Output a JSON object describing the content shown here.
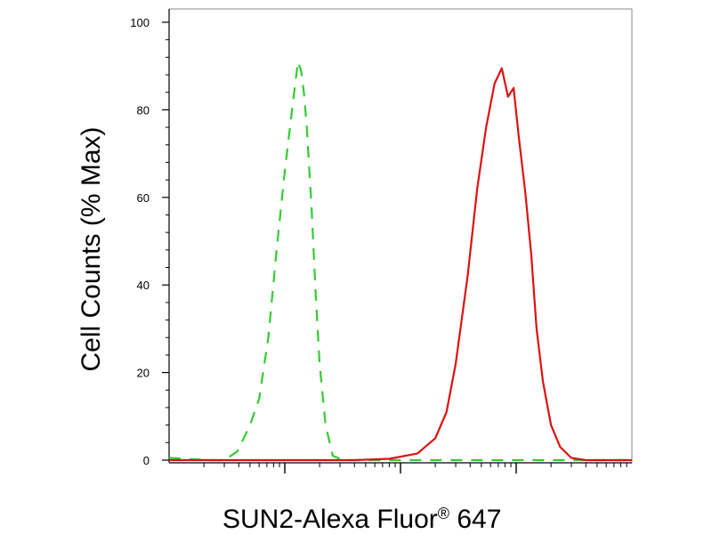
{
  "chart_data": {
    "type": "line",
    "xlabel": "SUN2-Alexa Fluor",
    "xlabel_superscript": "®",
    "xlabel_suffix": " 647",
    "ylabel": "Cell Counts (% Max)",
    "x_scale": "log",
    "y_ticks": [
      "0",
      "20",
      "40",
      "60",
      "80",
      "100"
    ],
    "y_tick_values": [
      0,
      20,
      40,
      60,
      80,
      100
    ],
    "ylim": [
      0,
      100
    ],
    "xlim": [
      0.1,
      1000
    ],
    "x_decades": [
      1,
      10,
      100
    ],
    "grid": false,
    "legend": "none",
    "series": [
      {
        "color": "#33cc33",
        "dash": "dashed",
        "x": [
          0.1,
          0.22,
          0.3,
          0.39,
          0.5,
          0.6,
          0.72,
          0.85,
          1.0,
          1.18,
          1.3,
          1.38,
          1.46,
          1.55,
          1.7,
          1.85,
          2.0,
          2.25,
          2.6,
          3.2,
          4.0,
          10,
          100,
          1000
        ],
        "y": [
          0.5,
          0,
          0,
          2,
          8,
          14,
          28,
          48,
          66,
          82,
          91,
          89,
          84,
          76,
          58,
          38,
          22,
          8,
          1,
          0,
          0,
          0,
          0,
          0
        ]
      },
      {
        "color": "#dd1111",
        "dash": "solid",
        "x": [
          0.1,
          4.0,
          8.0,
          14,
          20,
          25,
          30,
          38,
          46,
          55,
          65,
          75,
          85,
          95,
          105,
          120,
          135,
          150,
          170,
          200,
          240,
          300,
          400,
          1000
        ],
        "y": [
          0,
          0,
          0.3,
          1.5,
          5,
          11,
          22,
          42,
          62,
          76,
          86,
          89.5,
          83,
          85,
          74,
          61,
          47,
          30,
          18,
          8,
          3,
          0.5,
          0,
          0
        ]
      }
    ]
  }
}
